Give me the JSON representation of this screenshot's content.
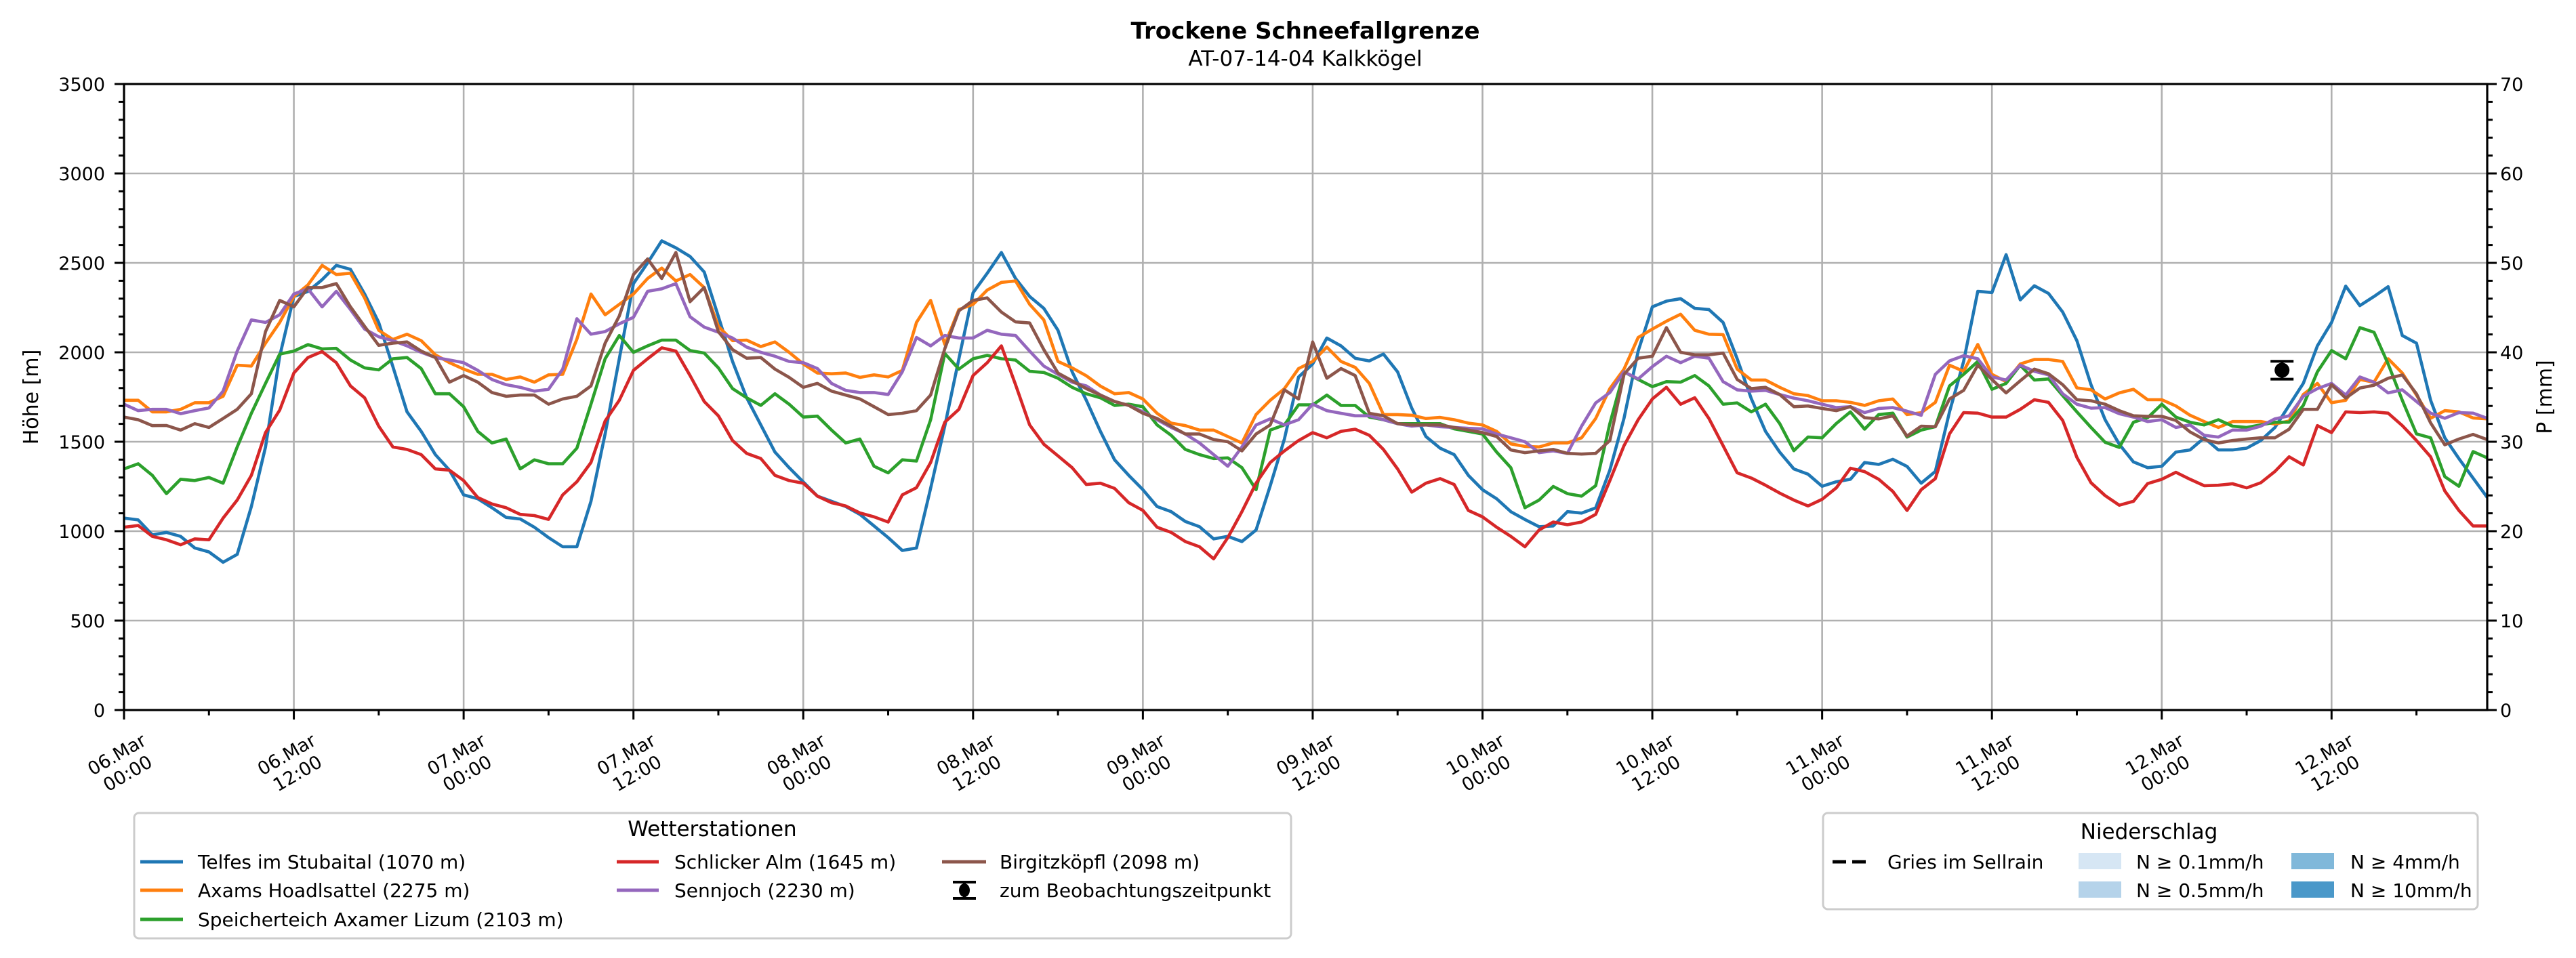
{
  "chart_data": {
    "type": "line",
    "title": "Trockene Schneefallgrenze",
    "subtitle": "AT-07-14-04 Kalkkögel",
    "xlabel": "",
    "ylabel": "Höhe [m]",
    "ylabel_right": "P [mm]",
    "ylim": [
      0,
      3500
    ],
    "ylim_right": [
      0,
      70
    ],
    "yticks": [
      0,
      500,
      1000,
      1500,
      2000,
      2500,
      3000,
      3500
    ],
    "yticks_right": [
      0,
      10,
      20,
      30,
      40,
      50,
      60,
      70
    ],
    "grid": true,
    "x_start": "06.Mar 00:00",
    "x_step_hours": 1,
    "x_range_hours": [
      0,
      167
    ],
    "x_ticks": [
      {
        "hour": 0,
        "date": "06.Mar",
        "time": "00:00"
      },
      {
        "hour": 12,
        "date": "06.Mar",
        "time": "12:00"
      },
      {
        "hour": 24,
        "date": "07.Mar",
        "time": "00:00"
      },
      {
        "hour": 36,
        "date": "07.Mar",
        "time": "12:00"
      },
      {
        "hour": 48,
        "date": "08.Mar",
        "time": "00:00"
      },
      {
        "hour": 60,
        "date": "08.Mar",
        "time": "12:00"
      },
      {
        "hour": 72,
        "date": "09.Mar",
        "time": "00:00"
      },
      {
        "hour": 84,
        "date": "09.Mar",
        "time": "12:00"
      },
      {
        "hour": 96,
        "date": "10.Mar",
        "time": "00:00"
      },
      {
        "hour": 108,
        "date": "10.Mar",
        "time": "12:00"
      },
      {
        "hour": 120,
        "date": "11.Mar",
        "time": "00:00"
      },
      {
        "hour": 132,
        "date": "11.Mar",
        "time": "12:00"
      },
      {
        "hour": 144,
        "date": "12.Mar",
        "time": "00:00"
      },
      {
        "hour": 156,
        "date": "12.Mar",
        "time": "12:00"
      }
    ],
    "series": [
      {
        "name": "Telfes im Stubaital (1070 m)",
        "color": "#1f77b4",
        "values": [
          1073,
          1063,
          979,
          993,
          971,
          906,
          884,
          826,
          870,
          1138,
          1471,
          1978,
          2312,
          2340,
          2406,
          2486,
          2464,
          2326,
          2167,
          1920,
          1667,
          1558,
          1428,
          1341,
          1203,
          1181,
          1131,
          1077,
          1068,
          1022,
          964,
          913,
          913,
          1167,
          1544,
          1964,
          2384,
          2500,
          2623,
          2584,
          2536,
          2449,
          2200,
          1949,
          1746,
          1594,
          1442,
          1355,
          1275,
          1196,
          1167,
          1138,
          1094,
          1029,
          964,
          892,
          906,
          1240,
          1588,
          1964,
          2333,
          2442,
          2558,
          2413,
          2312,
          2246,
          2123,
          1891,
          1732,
          1558,
          1399,
          1312,
          1232,
          1138,
          1109,
          1054,
          1025,
          957,
          971,
          942,
          1007,
          1254,
          1515,
          1862,
          1935,
          2080,
          2036,
          1967,
          1952,
          1990,
          1891,
          1688,
          1529,
          1464,
          1428,
          1312,
          1232,
          1181,
          1109,
          1065,
          1025,
          1029,
          1109,
          1101,
          1130,
          1341,
          1631,
          2007,
          2254,
          2286,
          2300,
          2246,
          2239,
          2167,
          1964,
          1740,
          1558,
          1442,
          1348,
          1319,
          1251,
          1276,
          1290,
          1384,
          1373,
          1402,
          1362,
          1268,
          1334,
          1667,
          1949,
          2341,
          2334,
          2546,
          2293,
          2372,
          2329,
          2225,
          2065,
          1819,
          1623,
          1486,
          1387,
          1355,
          1363,
          1442,
          1454,
          1522,
          1454,
          1454,
          1464,
          1507,
          1580,
          1703,
          1826,
          2036,
          2167,
          2370,
          2261,
          2312,
          2367,
          2094,
          2051,
          1732,
          1522,
          1406,
          1297,
          1189
        ]
      },
      {
        "name": "Axams Hoadlsattel (2275 m)",
        "color": "#ff7f0e",
        "values": [
          1732,
          1732,
          1667,
          1667,
          1681,
          1718,
          1718,
          1754,
          1928,
          1923,
          2051,
          2167,
          2312,
          2377,
          2486,
          2435,
          2442,
          2304,
          2123,
          2072,
          2101,
          2065,
          1986,
          1942,
          1906,
          1877,
          1877,
          1848,
          1862,
          1833,
          1874,
          1877,
          2073,
          2326,
          2210,
          2268,
          2326,
          2413,
          2471,
          2399,
          2435,
          2362,
          2145,
          2065,
          2068,
          2032,
          2058,
          2000,
          1935,
          1884,
          1880,
          1884,
          1860,
          1874,
          1862,
          1899,
          2167,
          2290,
          2044,
          2239,
          2268,
          2348,
          2391,
          2399,
          2268,
          2181,
          1949,
          1913,
          1869,
          1811,
          1768,
          1775,
          1739,
          1659,
          1604,
          1590,
          1565,
          1565,
          1529,
          1493,
          1652,
          1732,
          1797,
          1909,
          1949,
          2029,
          1949,
          1916,
          1826,
          1652,
          1652,
          1648,
          1630,
          1636,
          1623,
          1604,
          1594,
          1558,
          1488,
          1474,
          1471,
          1493,
          1493,
          1522,
          1630,
          1797,
          1906,
          2083,
          2130,
          2174,
          2213,
          2123,
          2101,
          2099,
          1906,
          1845,
          1845,
          1804,
          1768,
          1758,
          1729,
          1729,
          1720,
          1703,
          1729,
          1739,
          1652,
          1662,
          1720,
          1928,
          1894,
          2044,
          1877,
          1836,
          1935,
          1960,
          1960,
          1949,
          1801,
          1790,
          1739,
          1773,
          1793,
          1735,
          1735,
          1700,
          1648,
          1613,
          1580,
          1613,
          1613,
          1613,
          1599,
          1616,
          1764,
          1826,
          1718,
          1732,
          1848,
          1833,
          1964,
          1884,
          1761,
          1631,
          1674,
          1667,
          1633,
          1628
        ]
      },
      {
        "name": "Speicherteich Axamer Lizum (2103 m)",
        "color": "#2ca02c",
        "values": [
          1348,
          1377,
          1312,
          1210,
          1290,
          1283,
          1300,
          1268,
          1471,
          1659,
          1826,
          1990,
          2007,
          2043,
          2019,
          2022,
          1957,
          1913,
          1902,
          1964,
          1971,
          1909,
          1768,
          1768,
          1696,
          1558,
          1493,
          1515,
          1348,
          1399,
          1377,
          1377,
          1464,
          1710,
          1964,
          2094,
          2000,
          2036,
          2068,
          2068,
          2010,
          1996,
          1913,
          1797,
          1746,
          1703,
          1768,
          1710,
          1638,
          1643,
          1565,
          1493,
          1515,
          1363,
          1326,
          1399,
          1392,
          1623,
          1993,
          1906,
          1964,
          1983,
          1964,
          1957,
          1894,
          1887,
          1855,
          1804,
          1768,
          1746,
          1703,
          1710,
          1696,
          1594,
          1536,
          1457,
          1428,
          1406,
          1410,
          1355,
          1232,
          1565,
          1594,
          1706,
          1706,
          1761,
          1703,
          1703,
          1638,
          1623,
          1601,
          1601,
          1601,
          1601,
          1572,
          1558,
          1543,
          1442,
          1355,
          1131,
          1174,
          1250,
          1210,
          1196,
          1254,
          1601,
          1891,
          1848,
          1808,
          1836,
          1833,
          1870,
          1812,
          1710,
          1717,
          1667,
          1710,
          1602,
          1450,
          1526,
          1522,
          1602,
          1667,
          1570,
          1652,
          1660,
          1526,
          1565,
          1584,
          1812,
          1877,
          1949,
          1793,
          1826,
          1928,
          1845,
          1851,
          1758,
          1667,
          1580,
          1497,
          1468,
          1609,
          1634,
          1710,
          1638,
          1609,
          1594,
          1623,
          1587,
          1580,
          1594,
          1609,
          1609,
          1703,
          1891,
          2010,
          1964,
          2138,
          2112,
          1935,
          1732,
          1544,
          1522,
          1305,
          1251,
          1445,
          1410
        ]
      },
      {
        "name": "Schlicker Alm (1645 m)",
        "color": "#d62728",
        "values": [
          1022,
          1032,
          971,
          952,
          924,
          957,
          952,
          1073,
          1174,
          1312,
          1551,
          1677,
          1884,
          1971,
          2004,
          1942,
          1812,
          1746,
          1587,
          1471,
          1457,
          1428,
          1348,
          1341,
          1283,
          1188,
          1152,
          1131,
          1094,
          1087,
          1066,
          1203,
          1276,
          1384,
          1616,
          1732,
          1899,
          1964,
          2025,
          2007,
          1870,
          1725,
          1645,
          1507,
          1435,
          1406,
          1312,
          1283,
          1268,
          1196,
          1159,
          1141,
          1102,
          1080,
          1051,
          1203,
          1243,
          1384,
          1609,
          1681,
          1870,
          1942,
          2036,
          1819,
          1594,
          1486,
          1421,
          1355,
          1261,
          1268,
          1239,
          1159,
          1116,
          1022,
          993,
          942,
          913,
          845,
          964,
          1109,
          1268,
          1384,
          1449,
          1507,
          1551,
          1522,
          1558,
          1570,
          1536,
          1457,
          1348,
          1218,
          1268,
          1294,
          1261,
          1116,
          1080,
          1022,
          971,
          913,
          1007,
          1051,
          1036,
          1051,
          1094,
          1283,
          1478,
          1623,
          1739,
          1804,
          1710,
          1746,
          1630,
          1478,
          1326,
          1297,
          1257,
          1213,
          1174,
          1141,
          1178,
          1242,
          1352,
          1333,
          1290,
          1222,
          1116,
          1232,
          1294,
          1544,
          1663,
          1660,
          1638,
          1638,
          1681,
          1735,
          1720,
          1619,
          1413,
          1271,
          1199,
          1145,
          1167,
          1266,
          1290,
          1329,
          1290,
          1254,
          1257,
          1265,
          1242,
          1271,
          1334,
          1416,
          1370,
          1590,
          1551,
          1667,
          1663,
          1667,
          1660,
          1590,
          1507,
          1416,
          1225,
          1116,
          1029,
          1029
        ]
      },
      {
        "name": "Sennjoch (2230 m)",
        "color": "#9467bd",
        "values": [
          1710,
          1674,
          1681,
          1681,
          1657,
          1674,
          1689,
          1783,
          2007,
          2181,
          2167,
          2210,
          2326,
          2355,
          2254,
          2341,
          2239,
          2130,
          2087,
          2065,
          2036,
          2000,
          1971,
          1957,
          1942,
          1899,
          1848,
          1819,
          1804,
          1783,
          1793,
          1906,
          2188,
          2101,
          2116,
          2159,
          2196,
          2341,
          2355,
          2384,
          2199,
          2141,
          2112,
          2080,
          2029,
          2000,
          1978,
          1949,
          1942,
          1909,
          1826,
          1787,
          1775,
          1775,
          1764,
          1891,
          2083,
          2036,
          2094,
          2080,
          2080,
          2123,
          2101,
          2094,
          2007,
          1923,
          1877,
          1833,
          1812,
          1761,
          1725,
          1703,
          1667,
          1623,
          1580,
          1543,
          1493,
          1428,
          1363,
          1471,
          1594,
          1628,
          1594,
          1623,
          1710,
          1674,
          1659,
          1645,
          1645,
          1623,
          1601,
          1587,
          1594,
          1584,
          1580,
          1575,
          1572,
          1543,
          1522,
          1500,
          1439,
          1449,
          1435,
          1587,
          1717,
          1775,
          1891,
          1851,
          1920,
          1978,
          1942,
          1978,
          1967,
          1836,
          1790,
          1783,
          1787,
          1764,
          1744,
          1729,
          1710,
          1691,
          1696,
          1663,
          1686,
          1691,
          1671,
          1648,
          1877,
          1952,
          1981,
          1964,
          1862,
          1845,
          1928,
          1894,
          1874,
          1768,
          1710,
          1688,
          1691,
          1657,
          1638,
          1613,
          1623,
          1580,
          1594,
          1536,
          1526,
          1565,
          1565,
          1587,
          1628,
          1645,
          1754,
          1797,
          1826,
          1761,
          1862,
          1833,
          1773,
          1790,
          1725,
          1660,
          1631,
          1663,
          1660,
          1631
        ]
      },
      {
        "name": "Birgitzköpfl (2098 m)",
        "color": "#8c564b",
        "values": [
          1638,
          1623,
          1590,
          1591,
          1565,
          1601,
          1580,
          1630,
          1681,
          1768,
          2116,
          2290,
          2254,
          2362,
          2362,
          2384,
          2254,
          2145,
          2039,
          2051,
          2058,
          2007,
          1971,
          1833,
          1870,
          1833,
          1775,
          1754,
          1761,
          1761,
          1710,
          1739,
          1754,
          1812,
          2051,
          2203,
          2435,
          2522,
          2413,
          2558,
          2283,
          2362,
          2116,
          2015,
          1967,
          1971,
          1906,
          1860,
          1804,
          1826,
          1783,
          1761,
          1739,
          1696,
          1652,
          1659,
          1674,
          1761,
          2020,
          2232,
          2290,
          2304,
          2225,
          2170,
          2164,
          2015,
          1884,
          1841,
          1797,
          1761,
          1725,
          1703,
          1659,
          1630,
          1587,
          1543,
          1543,
          1512,
          1500,
          1449,
          1543,
          1594,
          1790,
          1739,
          2058,
          1855,
          1909,
          1870,
          1659,
          1645,
          1601,
          1594,
          1594,
          1594,
          1580,
          1565,
          1551,
          1529,
          1454,
          1439,
          1449,
          1457,
          1435,
          1431,
          1435,
          1507,
          1877,
          1967,
          1978,
          2138,
          2000,
          1986,
          1986,
          1996,
          1848,
          1797,
          1804,
          1764,
          1696,
          1700,
          1686,
          1674,
          1696,
          1634,
          1628,
          1645,
          1532,
          1587,
          1584,
          1739,
          1787,
          1928,
          1848,
          1773,
          1841,
          1906,
          1880,
          1819,
          1735,
          1729,
          1710,
          1674,
          1645,
          1642,
          1642,
          1619,
          1555,
          1512,
          1493,
          1507,
          1515,
          1522,
          1522,
          1570,
          1681,
          1681,
          1819,
          1744,
          1800,
          1816,
          1855,
          1873,
          1768,
          1605,
          1483,
          1515,
          1541,
          1512
        ]
      }
    ],
    "observation": {
      "label": "zum Beobachtungszeitpunkt",
      "hour": 152.5,
      "value": 1900,
      "error": 50,
      "color": "#000000"
    },
    "legend_stations_title": "Wetterstationen",
    "legend_precip": {
      "title": "Niederschlag",
      "line_label": "Gries im Sellrain",
      "classes": [
        {
          "label": "N ≥ 0.1mm/h",
          "color": "#d6e6f4"
        },
        {
          "label": "N ≥ 0.5mm/h",
          "color": "#b5d3ea"
        },
        {
          "label": "N ≥ 4mm/h",
          "color": "#80b8da"
        },
        {
          "label": "N ≥ 10mm/h",
          "color": "#4a98c9"
        }
      ]
    }
  }
}
